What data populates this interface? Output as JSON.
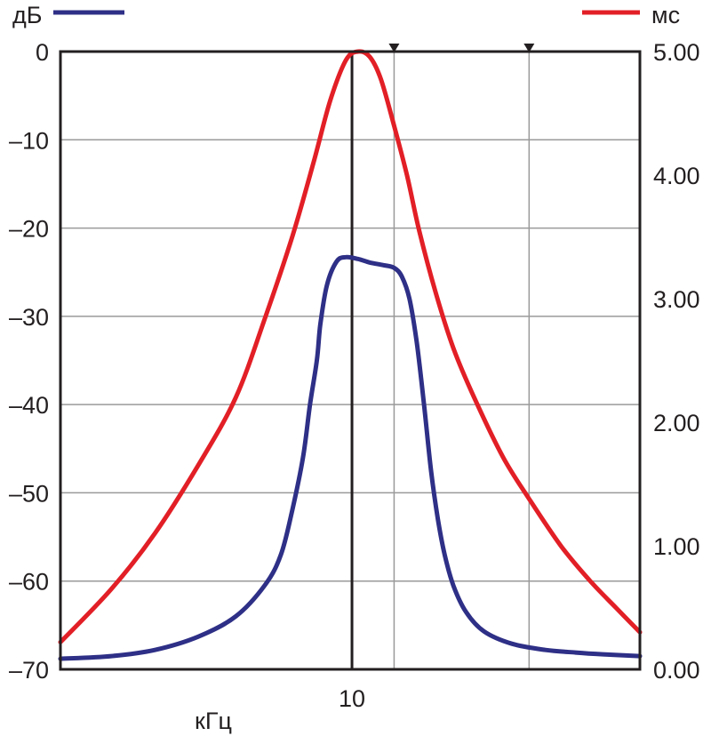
{
  "chart_data": {
    "type": "line",
    "xlabel": "кГц",
    "x_tick_labels": [
      {
        "x": 10,
        "label": "10"
      }
    ],
    "x_scale": "log",
    "left_axis": {
      "unit_label": "дБ",
      "ylim": [
        -70,
        0
      ],
      "ticks": [
        "0",
        "–10",
        "–20",
        "–30",
        "–40",
        "–50",
        "–60",
        "–70"
      ]
    },
    "right_axis": {
      "unit_label": "мс",
      "ylim": [
        0,
        5
      ],
      "ticks": [
        "5.00",
        "4.00",
        "3.00",
        "2.00",
        "1.00",
        "0.00"
      ]
    },
    "vertical_lines": [
      {
        "x": 10,
        "style": "bold"
      },
      {
        "x": 11.5,
        "style": "marker"
      },
      {
        "x": 18,
        "style": "marker"
      }
    ],
    "grid": true,
    "legend": "top, inline with axis unit labels",
    "colors": {
      "blue": "#2e2f86",
      "red": "#e21f26"
    },
    "series": [
      {
        "axis": "left",
        "color": "#2e2f86",
        "x": [
          3.8,
          4.5,
          5.2,
          6.0,
          6.8,
          7.5,
          7.9,
          8.2,
          8.5,
          8.7,
          8.9,
          9.0,
          9.2,
          9.5,
          9.8,
          10.2,
          10.6,
          11.1,
          11.5,
          11.8,
          12.1,
          12.4,
          12.7,
          13.0,
          13.3,
          13.6,
          14.0,
          14.6,
          15.5,
          17.0,
          19.0,
          21.0,
          23.0,
          26.0
        ],
        "y": [
          -68.8,
          -68.5,
          -67.8,
          -66.3,
          -64.0,
          -60.4,
          -57.0,
          -52.0,
          -46.0,
          -40.0,
          -35.0,
          -31.0,
          -26.5,
          -23.8,
          -23.3,
          -23.5,
          -23.9,
          -24.2,
          -24.5,
          -25.5,
          -28.0,
          -33.0,
          -40.0,
          -47.5,
          -53.0,
          -57.0,
          -60.5,
          -63.5,
          -65.7,
          -67.1,
          -67.8,
          -68.1,
          -68.3,
          -68.5
        ]
      },
      {
        "axis": "right",
        "color": "#e21f26",
        "x": [
          3.8,
          4.5,
          5.2,
          6.0,
          6.8,
          7.5,
          8.2,
          8.8,
          9.3,
          9.8,
          10.2,
          10.6,
          11.0,
          11.5,
          12.0,
          12.5,
          13.2,
          14.0,
          15.0,
          16.5,
          18.0,
          20.0,
          22.0,
          24.0,
          26.0
        ],
        "y": [
          0.22,
          0.65,
          1.1,
          1.65,
          2.2,
          2.85,
          3.5,
          4.1,
          4.6,
          4.93,
          5.0,
          4.96,
          4.78,
          4.4,
          4.0,
          3.55,
          3.05,
          2.6,
          2.2,
          1.72,
          1.38,
          1.0,
          0.72,
          0.5,
          0.3
        ]
      }
    ]
  }
}
